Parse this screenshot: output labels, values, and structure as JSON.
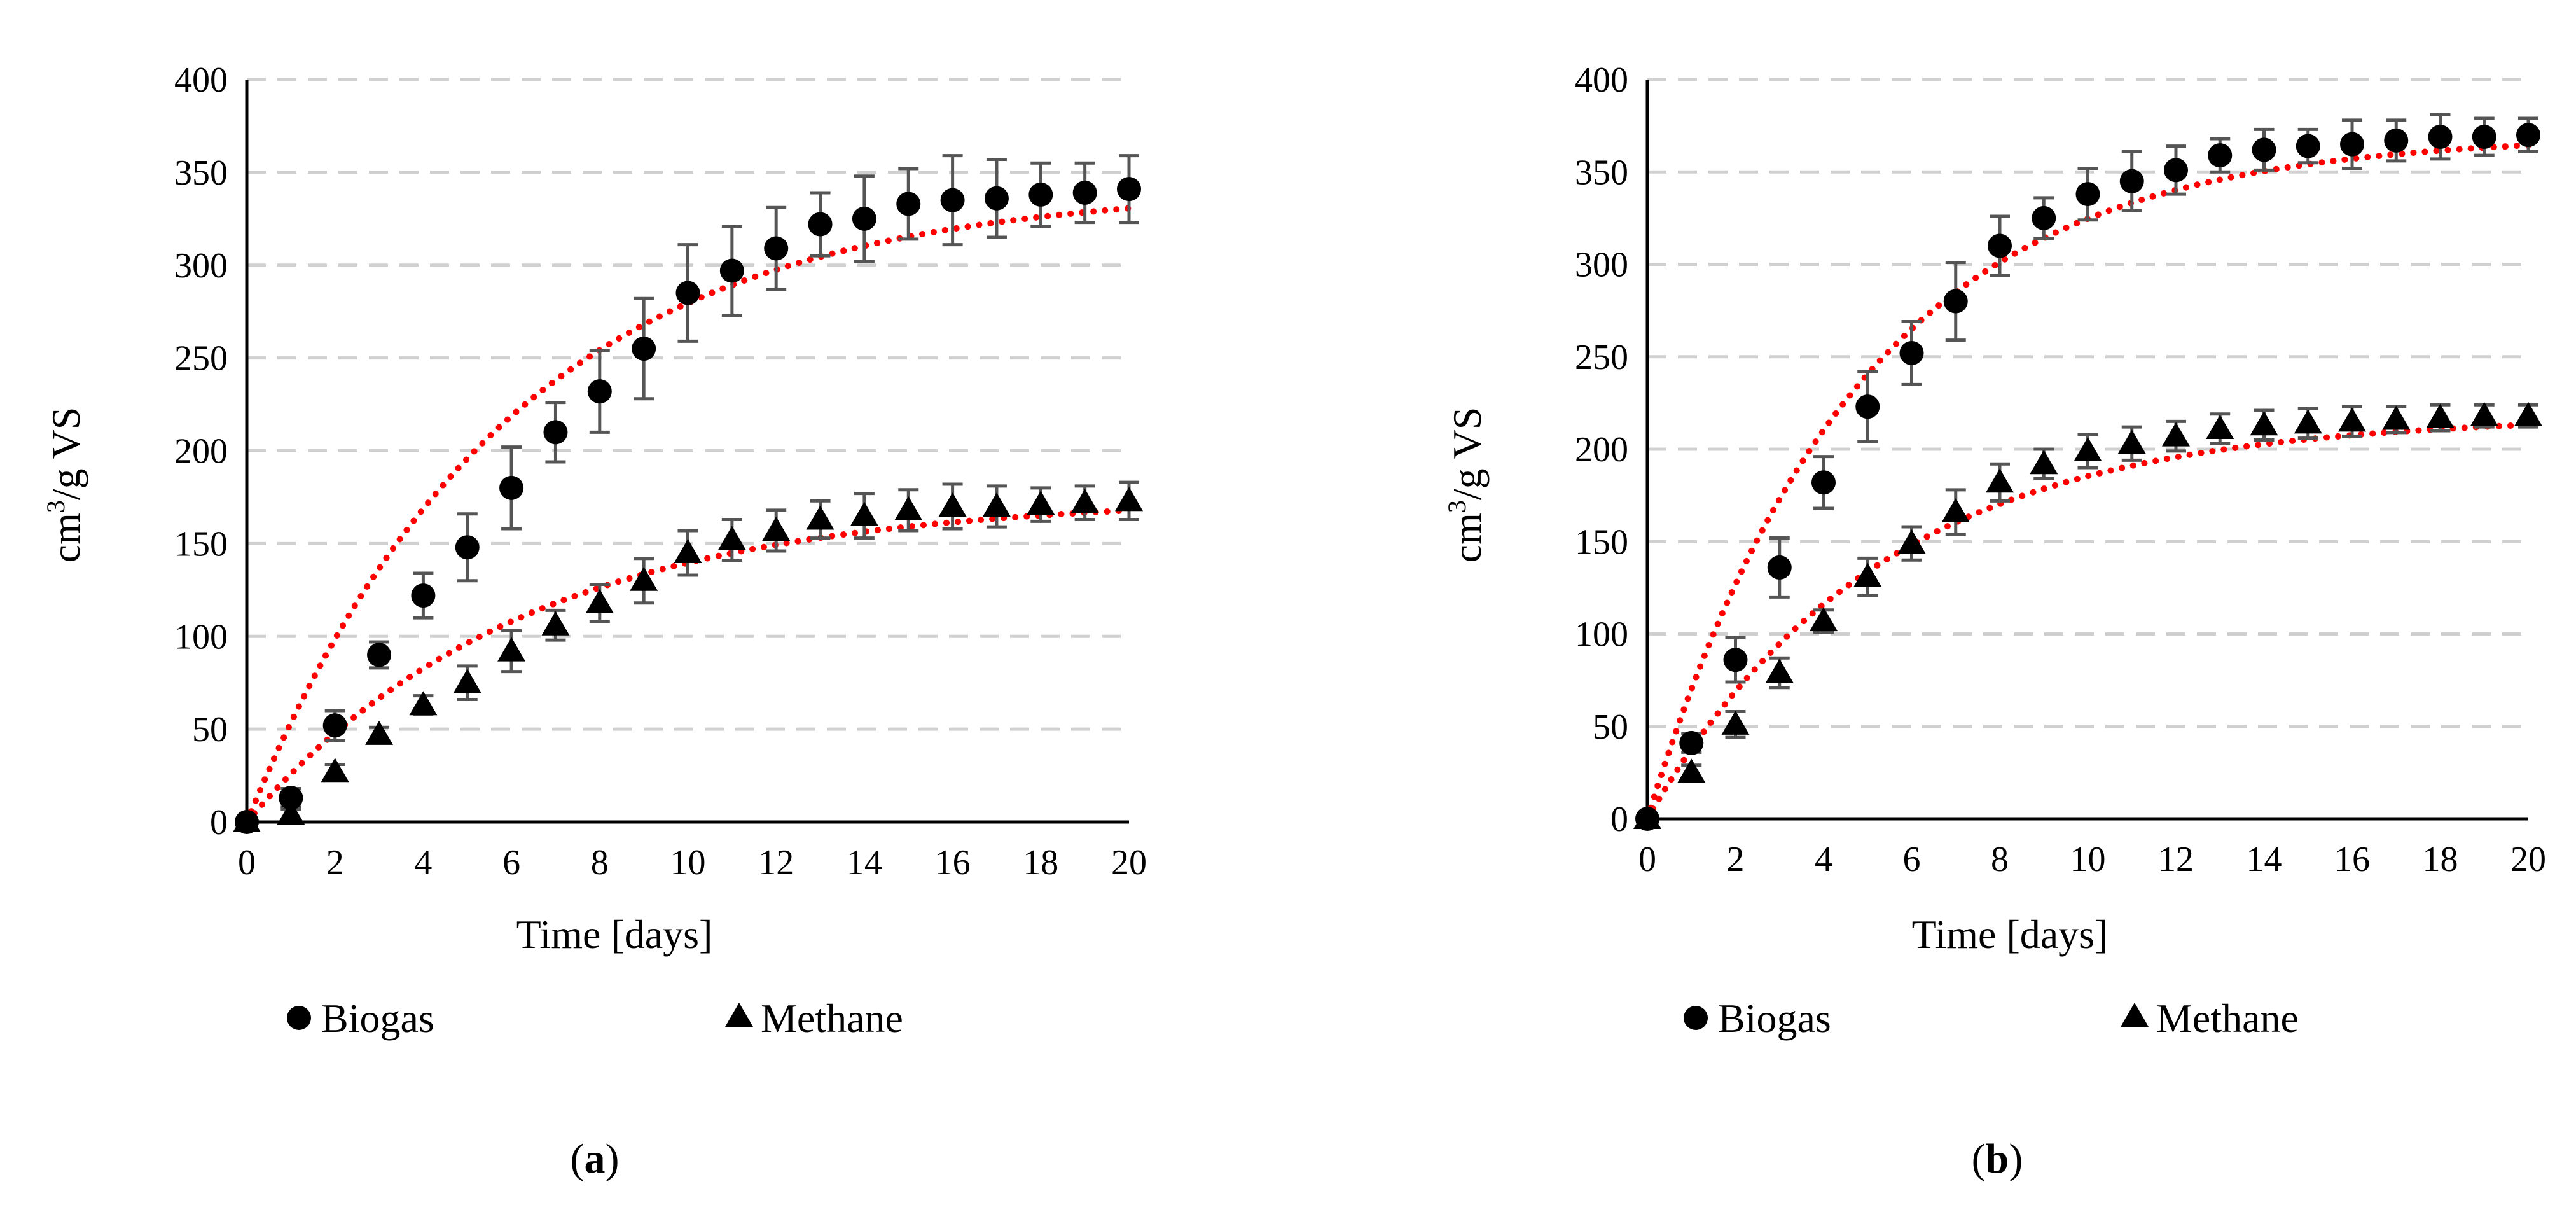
{
  "figure": {
    "panel_labels": [
      "a",
      "b"
    ]
  },
  "chart_data": [
    {
      "type": "scatter",
      "panel": "a",
      "xlabel": "Time [days]",
      "ylabel_main": "cm",
      "ylabel_sup": "3",
      "ylabel_rest": "/g VS",
      "xlim": [
        0,
        20
      ],
      "ylim": [
        0,
        400
      ],
      "xticks": [
        0,
        2,
        4,
        6,
        8,
        10,
        12,
        14,
        16,
        18,
        20
      ],
      "yticks": [
        0,
        50,
        100,
        150,
        200,
        250,
        300,
        350,
        400
      ],
      "grid": "horizontal dashed",
      "legend": "bottom",
      "fit_color": "#ff0000",
      "series": [
        {
          "name": "Biogas",
          "marker": "circle",
          "x": [
            0,
            1,
            2,
            3,
            4,
            5,
            6,
            7,
            8,
            9,
            10,
            11,
            12,
            13,
            14,
            15,
            16,
            17,
            18,
            19,
            20
          ],
          "y": [
            0,
            13,
            52,
            90,
            122,
            148,
            180,
            210,
            232,
            255,
            285,
            297,
            309,
            322,
            325,
            333,
            335,
            336,
            338,
            339,
            341
          ],
          "err": [
            0,
            5,
            8,
            7,
            12,
            18,
            22,
            16,
            22,
            27,
            26,
            24,
            22,
            17,
            23,
            19,
            24,
            21,
            17,
            16,
            18
          ],
          "fit": {
            "ymax": 342,
            "k": 0.17
          }
        },
        {
          "name": "Methane",
          "marker": "triangle",
          "x": [
            0,
            1,
            2,
            3,
            4,
            5,
            6,
            7,
            8,
            9,
            10,
            11,
            12,
            13,
            14,
            15,
            16,
            17,
            18,
            19,
            20
          ],
          "y": [
            0,
            4,
            27,
            47,
            63,
            75,
            92,
            106,
            118,
            130,
            145,
            152,
            157,
            163,
            165,
            168,
            170,
            170,
            171,
            172,
            173
          ],
          "err": [
            0,
            3,
            4,
            4,
            5,
            9,
            11,
            8,
            10,
            12,
            12,
            11,
            11,
            10,
            12,
            11,
            12,
            11,
            9,
            9,
            10
          ],
          "fit": {
            "ymax": 175,
            "k": 0.16
          }
        }
      ]
    },
    {
      "type": "scatter",
      "panel": "b",
      "xlabel": "Time [days]",
      "ylabel_main": "cm",
      "ylabel_sup": "3",
      "ylabel_rest": "/g VS",
      "xlim": [
        0,
        20
      ],
      "ylim": [
        0,
        400
      ],
      "xticks": [
        0,
        2,
        4,
        6,
        8,
        10,
        12,
        14,
        16,
        18,
        20
      ],
      "yticks": [
        0,
        50,
        100,
        150,
        200,
        250,
        300,
        350,
        400
      ],
      "grid": "horizontal dashed",
      "legend": "bottom",
      "fit_color": "#ff0000",
      "series": [
        {
          "name": "Biogas",
          "marker": "circle",
          "x": [
            0,
            1,
            2,
            3,
            4,
            5,
            6,
            7,
            8,
            9,
            10,
            11,
            12,
            13,
            14,
            15,
            16,
            17,
            18,
            19,
            20
          ],
          "y": [
            0,
            41,
            86,
            136,
            182,
            223,
            252,
            280,
            310,
            325,
            338,
            345,
            351,
            359,
            362,
            364,
            365,
            367,
            369,
            369,
            370
          ],
          "err": [
            0,
            5,
            12,
            16,
            14,
            19,
            17,
            21,
            16,
            11,
            14,
            16,
            13,
            9,
            11,
            9,
            13,
            11,
            12,
            10,
            9
          ],
          "fit": {
            "ymax": 370,
            "k": 0.21
          }
        },
        {
          "name": "Methane",
          "marker": "triangle",
          "x": [
            0,
            1,
            2,
            3,
            4,
            5,
            6,
            7,
            8,
            9,
            10,
            11,
            12,
            13,
            14,
            15,
            16,
            17,
            18,
            19,
            20
          ],
          "y": [
            0,
            25,
            51,
            79,
            107,
            131,
            149,
            166,
            182,
            192,
            199,
            203,
            207,
            211,
            213,
            214,
            215,
            216,
            217,
            218,
            218
          ],
          "err": [
            0,
            4,
            7,
            8,
            6,
            10,
            9,
            12,
            10,
            8,
            9,
            9,
            8,
            8,
            8,
            8,
            8,
            7,
            7,
            6,
            6
          ],
          "fit": {
            "ymax": 218,
            "k": 0.19
          }
        }
      ]
    }
  ]
}
